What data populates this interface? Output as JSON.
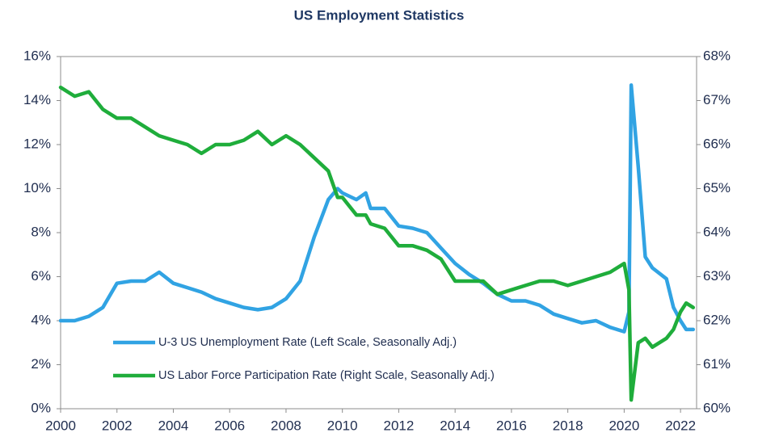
{
  "chart_data": {
    "type": "line",
    "title": "US Employment Statistics",
    "x": [
      2000,
      2000.5,
      2001,
      2001.5,
      2002,
      2002.5,
      2003,
      2003.5,
      2004,
      2004.5,
      2005,
      2005.5,
      2006,
      2006.5,
      2007,
      2007.5,
      2008,
      2008.5,
      2009,
      2009.5,
      2009.83,
      2010,
      2010.5,
      2010.83,
      2011,
      2011.5,
      2012,
      2012.5,
      2013,
      2013.5,
      2014,
      2014.5,
      2015,
      2015.5,
      2016,
      2016.5,
      2017,
      2017.5,
      2018,
      2018.5,
      2019,
      2019.5,
      2020,
      2020.17,
      2020.25,
      2020.5,
      2020.75,
      2021,
      2021.5,
      2021.75,
      2022,
      2022.2,
      2022.45
    ],
    "series": [
      {
        "name": "U-3 US Unemployment Rate (Left Scale, Seasonally Adj.)",
        "color": "#31a3e3",
        "axis": "y",
        "values": [
          4.0,
          4.0,
          4.2,
          4.6,
          5.7,
          5.8,
          5.8,
          6.2,
          5.7,
          5.5,
          5.3,
          5.0,
          4.8,
          4.6,
          4.5,
          4.6,
          5.0,
          5.8,
          7.8,
          9.5,
          10.0,
          9.8,
          9.5,
          9.8,
          9.1,
          9.1,
          8.3,
          8.2,
          8.0,
          7.3,
          6.6,
          6.1,
          5.7,
          5.2,
          4.9,
          4.9,
          4.7,
          4.3,
          4.1,
          3.9,
          4.0,
          3.7,
          3.5,
          4.4,
          14.7,
          11.0,
          6.9,
          6.4,
          5.9,
          4.6,
          4.0,
          3.6,
          3.6
        ]
      },
      {
        "name": "US Labor Force Participation Rate (Right Scale, Seasonally Adj.)",
        "color": "#1fad3b",
        "axis": "y2",
        "values": [
          67.3,
          67.1,
          67.2,
          66.8,
          66.6,
          66.6,
          66.4,
          66.2,
          66.1,
          66.0,
          65.8,
          66.0,
          66.0,
          66.1,
          66.3,
          66.0,
          66.2,
          66.0,
          65.7,
          65.4,
          64.8,
          64.8,
          64.4,
          64.4,
          64.2,
          64.1,
          63.7,
          63.7,
          63.6,
          63.4,
          62.9,
          62.9,
          62.9,
          62.6,
          62.7,
          62.8,
          62.9,
          62.9,
          62.8,
          62.9,
          63.0,
          63.1,
          63.3,
          62.7,
          60.2,
          61.5,
          61.6,
          61.4,
          61.6,
          61.8,
          62.2,
          62.4,
          62.3
        ]
      }
    ],
    "xlim": [
      2000,
      2022.57
    ],
    "xticks": [
      2000,
      2002,
      2004,
      2006,
      2008,
      2010,
      2012,
      2014,
      2016,
      2018,
      2020,
      2022
    ],
    "ylim": [
      0,
      16
    ],
    "yticks": [
      {
        "value": 0,
        "label": "0%"
      },
      {
        "value": 2,
        "label": "2%"
      },
      {
        "value": 4,
        "label": "4%"
      },
      {
        "value": 6,
        "label": "6%"
      },
      {
        "value": 8,
        "label": "8%"
      },
      {
        "value": 10,
        "label": "10%"
      },
      {
        "value": 12,
        "label": "12%"
      },
      {
        "value": 14,
        "label": "14%"
      },
      {
        "value": 16,
        "label": "16%"
      }
    ],
    "y2lim": [
      60,
      68
    ],
    "y2ticks": [
      {
        "value": 60,
        "label": "60%"
      },
      {
        "value": 61,
        "label": "61%"
      },
      {
        "value": 62,
        "label": "62%"
      },
      {
        "value": 63,
        "label": "63%"
      },
      {
        "value": 64,
        "label": "64%"
      },
      {
        "value": 65,
        "label": "65%"
      },
      {
        "value": 66,
        "label": "66%"
      },
      {
        "value": 67,
        "label": "67%"
      },
      {
        "value": 68,
        "label": "68%"
      }
    ],
    "grid": false,
    "legend": "lower left"
  }
}
